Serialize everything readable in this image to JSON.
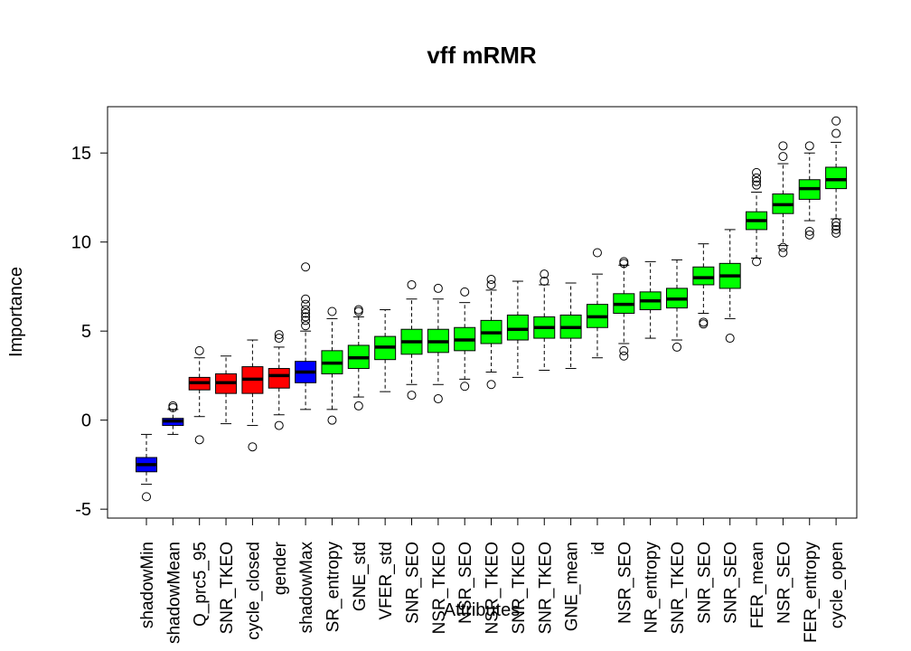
{
  "chart_data": {
    "type": "boxplot",
    "title": "vff mRMR",
    "xlabel": "Attributes",
    "ylabel": "Importance",
    "ylim": [
      -5.5,
      17.6
    ],
    "yticks": [
      -5,
      0,
      5,
      10,
      15
    ],
    "ytick_labels": [
      "-5",
      "0",
      "5",
      "10",
      "15"
    ],
    "colors": {
      "shadow": "#0000ff",
      "rejected": "#ff0000",
      "confirmed": "#00ff00"
    },
    "categories": [
      "shadowMin",
      "shadowMean",
      "Q_prc5_95",
      "SNR_TKEO",
      "cycle_closed",
      "gender",
      "shadowMax",
      "SR_entropy",
      "GNE_std",
      "VFER_std",
      "SNR_SEO",
      "NSR_TKEO",
      "NSR_SEO",
      "NSR_TKEO",
      "SNR_TKEO",
      "SNR_TKEO",
      "GNE_mean",
      "id",
      "NSR_SEO",
      "NR_entropy",
      "SNR_TKEO",
      "SNR_SEO",
      "SNR_SEO",
      "FER_mean",
      "NSR_SEO",
      "FER_entropy",
      "cycle_open"
    ],
    "boxes": [
      {
        "group": "shadow",
        "min": -3.6,
        "q1": -2.9,
        "median": -2.5,
        "q3": -2.1,
        "max": -0.8,
        "outliers": [
          -4.3
        ]
      },
      {
        "group": "shadow",
        "min": -0.8,
        "q1": -0.3,
        "median": -0.05,
        "q3": 0.1,
        "max": 0.6,
        "outliers": [
          0.7,
          0.8
        ]
      },
      {
        "group": "rejected",
        "min": 0.2,
        "q1": 1.7,
        "median": 2.1,
        "q3": 2.4,
        "max": 3.5,
        "outliers": [
          3.9,
          -1.1
        ]
      },
      {
        "group": "rejected",
        "min": -0.2,
        "q1": 1.5,
        "median": 2.1,
        "q3": 2.6,
        "max": 3.6,
        "outliers": []
      },
      {
        "group": "rejected",
        "min": -0.3,
        "q1": 1.5,
        "median": 2.3,
        "q3": 3.0,
        "max": 4.5,
        "outliers": [
          -1.5
        ]
      },
      {
        "group": "rejected",
        "min": 0.3,
        "q1": 1.8,
        "median": 2.5,
        "q3": 2.9,
        "max": 4.1,
        "outliers": [
          4.6,
          4.8,
          -0.3
        ]
      },
      {
        "group": "shadow",
        "min": 0.6,
        "q1": 2.1,
        "median": 2.7,
        "q3": 3.3,
        "max": 5.0,
        "outliers": [
          5.3,
          5.6,
          5.8,
          6.0,
          6.2,
          6.5,
          6.8,
          8.6
        ]
      },
      {
        "group": "confirmed",
        "min": 0.6,
        "q1": 2.6,
        "median": 3.2,
        "q3": 3.9,
        "max": 5.7,
        "outliers": [
          6.1,
          0.0
        ]
      },
      {
        "group": "confirmed",
        "min": 1.3,
        "q1": 2.9,
        "median": 3.5,
        "q3": 4.2,
        "max": 5.8,
        "outliers": [
          6.1,
          6.2,
          0.8
        ]
      },
      {
        "group": "confirmed",
        "min": 1.6,
        "q1": 3.4,
        "median": 4.1,
        "q3": 4.7,
        "max": 6.2,
        "outliers": []
      },
      {
        "group": "confirmed",
        "min": 2.0,
        "q1": 3.7,
        "median": 4.4,
        "q3": 5.1,
        "max": 6.8,
        "outliers": [
          7.6,
          1.4
        ]
      },
      {
        "group": "confirmed",
        "min": 2.0,
        "q1": 3.8,
        "median": 4.4,
        "q3": 5.1,
        "max": 6.8,
        "outliers": [
          7.4,
          1.2
        ]
      },
      {
        "group": "confirmed",
        "min": 2.3,
        "q1": 3.9,
        "median": 4.5,
        "q3": 5.2,
        "max": 6.6,
        "outliers": [
          7.2,
          1.9
        ]
      },
      {
        "group": "confirmed",
        "min": 2.7,
        "q1": 4.3,
        "median": 4.9,
        "q3": 5.6,
        "max": 7.3,
        "outliers": [
          7.6,
          7.9,
          2.0
        ]
      },
      {
        "group": "confirmed",
        "min": 2.4,
        "q1": 4.5,
        "median": 5.1,
        "q3": 5.9,
        "max": 7.8,
        "outliers": []
      },
      {
        "group": "confirmed",
        "min": 2.8,
        "q1": 4.6,
        "median": 5.2,
        "q3": 5.8,
        "max": 7.6,
        "outliers": [
          7.8,
          8.2
        ]
      },
      {
        "group": "confirmed",
        "min": 2.9,
        "q1": 4.6,
        "median": 5.2,
        "q3": 5.9,
        "max": 7.7,
        "outliers": []
      },
      {
        "group": "confirmed",
        "min": 3.5,
        "q1": 5.2,
        "median": 5.8,
        "q3": 6.5,
        "max": 8.2,
        "outliers": [
          9.4
        ]
      },
      {
        "group": "confirmed",
        "min": 4.3,
        "q1": 6.0,
        "median": 6.5,
        "q3": 7.1,
        "max": 8.7,
        "outliers": [
          8.8,
          8.9,
          3.6,
          3.9
        ]
      },
      {
        "group": "confirmed",
        "min": 4.6,
        "q1": 6.2,
        "median": 6.7,
        "q3": 7.2,
        "max": 8.9,
        "outliers": []
      },
      {
        "group": "confirmed",
        "min": 4.5,
        "q1": 6.3,
        "median": 6.8,
        "q3": 7.4,
        "max": 9.0,
        "outliers": [
          4.1
        ]
      },
      {
        "group": "confirmed",
        "min": 6.0,
        "q1": 7.6,
        "median": 8.0,
        "q3": 8.6,
        "max": 9.9,
        "outliers": [
          5.4,
          5.5
        ]
      },
      {
        "group": "confirmed",
        "min": 5.7,
        "q1": 7.4,
        "median": 8.1,
        "q3": 8.8,
        "max": 10.7,
        "outliers": [
          4.6
        ]
      },
      {
        "group": "confirmed",
        "min": 9.1,
        "q1": 10.7,
        "median": 11.2,
        "q3": 11.7,
        "max": 12.8,
        "outliers": [
          13.2,
          13.4,
          13.6,
          13.9,
          8.9
        ]
      },
      {
        "group": "confirmed",
        "min": 9.8,
        "q1": 11.6,
        "median": 12.1,
        "q3": 12.7,
        "max": 14.4,
        "outliers": [
          14.8,
          15.4,
          9.7,
          9.4
        ]
      },
      {
        "group": "confirmed",
        "min": 11.2,
        "q1": 12.4,
        "median": 13.0,
        "q3": 13.5,
        "max": 15.0,
        "outliers": [
          15.4,
          10.6,
          10.4
        ]
      },
      {
        "group": "confirmed",
        "min": 11.3,
        "q1": 13.0,
        "median": 13.5,
        "q3": 14.2,
        "max": 15.6,
        "outliers": [
          16.1,
          16.8,
          11.1,
          10.9,
          10.7,
          10.5
        ]
      }
    ]
  }
}
